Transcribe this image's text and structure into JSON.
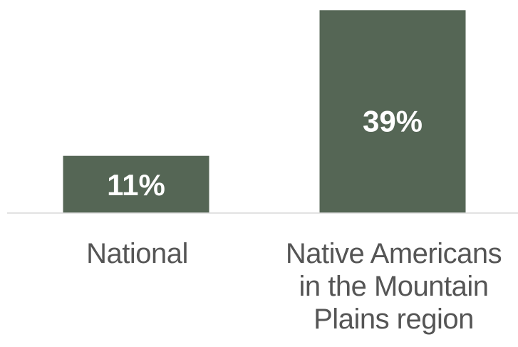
{
  "chart_data": {
    "type": "bar",
    "categories": [
      "National",
      "Native Americans in the Mountain Plains region"
    ],
    "category_lines": [
      [
        "National"
      ],
      [
        "Native Americans",
        "in the Mountain",
        "Plains region"
      ]
    ],
    "values": [
      11,
      39
    ],
    "data_labels": [
      "11%",
      "39%"
    ],
    "ylim": [
      0,
      40
    ],
    "grid": false,
    "legend": "none",
    "colors": {
      "bar": "#556655",
      "data_label": "#ffffff",
      "baseline": "#d9d9d9",
      "category_label": "#555555"
    }
  }
}
